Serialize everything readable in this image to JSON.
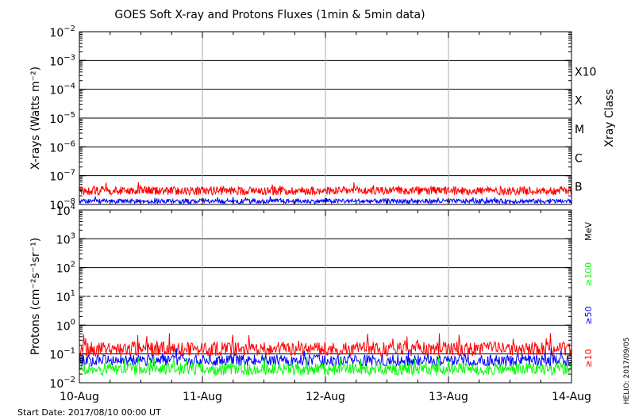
{
  "title": "GOES Soft X-ray and Protons Fluxes   (1min & 5min data)",
  "footer": {
    "start_date": "Start Date: 2017/08/10 00:00 UT",
    "credit": "HELIO: 2017/09/05"
  },
  "chart_data": [
    {
      "type": "line",
      "title": "GOES Soft X-ray and Protons Fluxes   (1min & 5min data)",
      "ylabel": "X-rays (Watts m⁻²)",
      "yscale": "log",
      "ylim": [
        1e-08,
        0.01
      ],
      "yticks": [
        {
          "exp": "-2",
          "label": "10-2"
        },
        {
          "exp": "-3",
          "label": "10-3"
        },
        {
          "exp": "-4",
          "label": "10-4"
        },
        {
          "exp": "-5",
          "label": "10-5"
        },
        {
          "exp": "-6",
          "label": "10-6"
        },
        {
          "exp": "-7",
          "label": "10-7"
        },
        {
          "exp": "-8",
          "label": "10-8"
        }
      ],
      "x": [
        "10-Aug",
        "11-Aug",
        "12-Aug",
        "13-Aug",
        "14-Aug"
      ],
      "right_axis_title": "Xray Class",
      "right_axis_labels": [
        {
          "label": "X10",
          "value": 0.001
        },
        {
          "label": "X",
          "value": 0.0001
        },
        {
          "label": "M",
          "value": 1e-05
        },
        {
          "label": "C",
          "value": 1e-06
        },
        {
          "label": "B",
          "value": 1e-07
        }
      ],
      "grid": true,
      "series": [
        {
          "color": "#ff0000",
          "level": 3e-08,
          "noise_decades": 0.15,
          "note_range": [
            2e-08,
            5e-08
          ]
        },
        {
          "color": "#0000ff",
          "level": 1.3e-08,
          "noise_decades": 0.08,
          "note_range": [
            1e-08,
            1.8e-08
          ]
        }
      ]
    },
    {
      "type": "line",
      "ylabel": "Protons (cm⁻²s⁻¹sr⁻¹)",
      "yscale": "log",
      "ylim": [
        0.01,
        10000
      ],
      "yticks": [
        {
          "base": "10",
          "exp": "4"
        },
        {
          "base": "10",
          "exp": "3"
        },
        {
          "base": "10",
          "exp": "2"
        },
        {
          "base": "10",
          "exp": "1"
        },
        {
          "base": "10",
          "exp": "0"
        },
        {
          "base": "10",
          "exp": "-1"
        },
        {
          "base": "10",
          "exp": "-2"
        }
      ],
      "x": [
        "10-Aug",
        "11-Aug",
        "12-Aug",
        "13-Aug",
        "14-Aug"
      ],
      "units": "MeV",
      "dashed_threshold": 10,
      "grid": true,
      "series": [
        {
          "name": "≥10",
          "color": "#ff0000",
          "level": 0.15,
          "noise_decades": 0.25
        },
        {
          "name": "≥50",
          "color": "#0000ff",
          "level": 0.06,
          "noise_decades": 0.2
        },
        {
          "name": "≥100",
          "color": "#00ff00",
          "level": 0.03,
          "noise_decades": 0.22
        }
      ]
    }
  ]
}
